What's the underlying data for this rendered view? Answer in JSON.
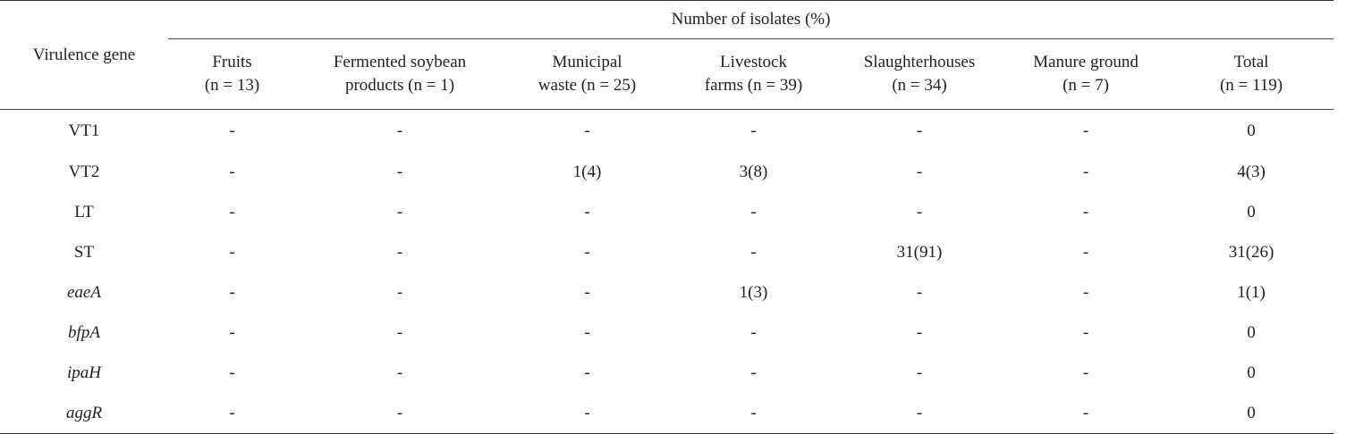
{
  "table": {
    "stub_header": "Virulence gene",
    "group_header": "Number of isolates (%)",
    "columns": [
      {
        "line1": "Fruits",
        "line2": "(n = 13)"
      },
      {
        "line1": "Fermented soybean",
        "line2": "products (n = 1)"
      },
      {
        "line1": "Municipal",
        "line2": "waste (n = 25)"
      },
      {
        "line1": "Livestock",
        "line2": "farms (n = 39)"
      },
      {
        "line1": "Slaughterhouses",
        "line2": "(n = 34)"
      },
      {
        "line1": "Manure ground",
        "line2": "(n = 7)"
      },
      {
        "line1": "Total",
        "line2": "(n = 119)"
      }
    ],
    "rows": [
      {
        "gene": "VT1",
        "italic": false,
        "values": [
          "-",
          "-",
          "-",
          "-",
          "-",
          "-",
          "0"
        ]
      },
      {
        "gene": "VT2",
        "italic": false,
        "values": [
          "-",
          "-",
          "1(4)",
          "3(8)",
          "-",
          "-",
          "4(3)"
        ]
      },
      {
        "gene": "LT",
        "italic": false,
        "values": [
          "-",
          "-",
          "-",
          "-",
          "-",
          "-",
          "0"
        ]
      },
      {
        "gene": "ST",
        "italic": false,
        "values": [
          "-",
          "-",
          "-",
          "-",
          "31(91)",
          "-",
          "31(26)"
        ]
      },
      {
        "gene": "eaeA",
        "italic": true,
        "values": [
          "-",
          "-",
          "-",
          "1(3)",
          "-",
          "-",
          "1(1)"
        ]
      },
      {
        "gene": "bfpA",
        "italic": true,
        "values": [
          "-",
          "-",
          "-",
          "-",
          "-",
          "-",
          "0"
        ]
      },
      {
        "gene": "ipaH",
        "italic": true,
        "values": [
          "-",
          "-",
          "-",
          "-",
          "-",
          "-",
          "0"
        ]
      },
      {
        "gene": "aggR",
        "italic": true,
        "values": [
          "-",
          "-",
          "-",
          "-",
          "-",
          "-",
          "0"
        ]
      }
    ]
  }
}
